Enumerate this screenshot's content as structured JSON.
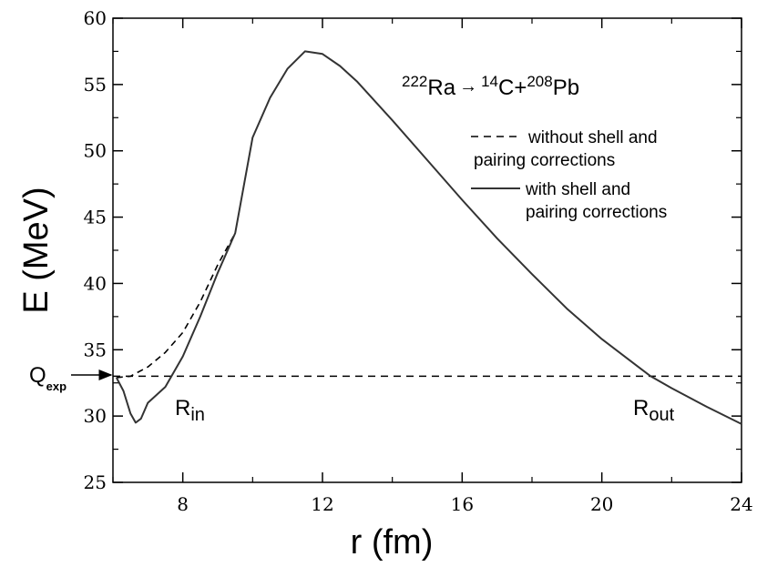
{
  "chart_data": {
    "type": "line",
    "xlabel": "r (fm)",
    "ylabel": "E (MeV)",
    "xlim": [
      6,
      24
    ],
    "ylim": [
      25,
      60
    ],
    "xticks": [
      8,
      12,
      16,
      20,
      24
    ],
    "yticks": [
      25,
      30,
      35,
      40,
      45,
      50,
      55,
      60
    ],
    "reaction": {
      "parent_mass": "222",
      "parent": "Ra",
      "arrow": "→",
      "light_mass": "14",
      "light": "C",
      "plus": "+",
      "heavy_mass": "208",
      "heavy": "Pb"
    },
    "legend": [
      {
        "style": "dashed",
        "line1": "without shell and",
        "line2": "pairing corrections"
      },
      {
        "style": "solid",
        "line1": "with shell and",
        "line2": "pairing corrections"
      }
    ],
    "annotations": {
      "q_main": "Q",
      "q_sub": "exp",
      "r_in_main": "R",
      "r_in_sub": "in",
      "r_out_main": "R",
      "r_out_sub": "out"
    },
    "q_exp": 33.0,
    "series": [
      {
        "name": "without shell and pairing corrections",
        "style": "dashed",
        "x": [
          6.1,
          6.5,
          7.0,
          7.5,
          8.0,
          8.5,
          9.0,
          9.5
        ],
        "y": [
          32.9,
          33.0,
          33.7,
          34.8,
          36.3,
          38.6,
          41.4,
          43.8
        ]
      },
      {
        "name": "with shell and pairing corrections",
        "style": "solid",
        "x": [
          6.1,
          6.3,
          6.5,
          6.65,
          6.8,
          7.0,
          7.5,
          8.0,
          8.5,
          9.0,
          9.5,
          10.0,
          10.5,
          11.0,
          11.5,
          12.0,
          12.5,
          13.0,
          14.0,
          15.0,
          16.0,
          17.0,
          18.0,
          19.0,
          20.0,
          21.0,
          21.4,
          22.0,
          23.0,
          24.0
        ],
        "y": [
          32.9,
          31.9,
          30.2,
          29.5,
          29.8,
          31.0,
          32.2,
          34.5,
          37.5,
          40.8,
          43.8,
          51.0,
          54.0,
          56.2,
          57.5,
          57.3,
          56.4,
          55.2,
          52.3,
          49.3,
          46.3,
          43.4,
          40.7,
          38.1,
          35.8,
          33.8,
          33.0,
          32.1,
          30.7,
          29.4
        ]
      }
    ]
  }
}
